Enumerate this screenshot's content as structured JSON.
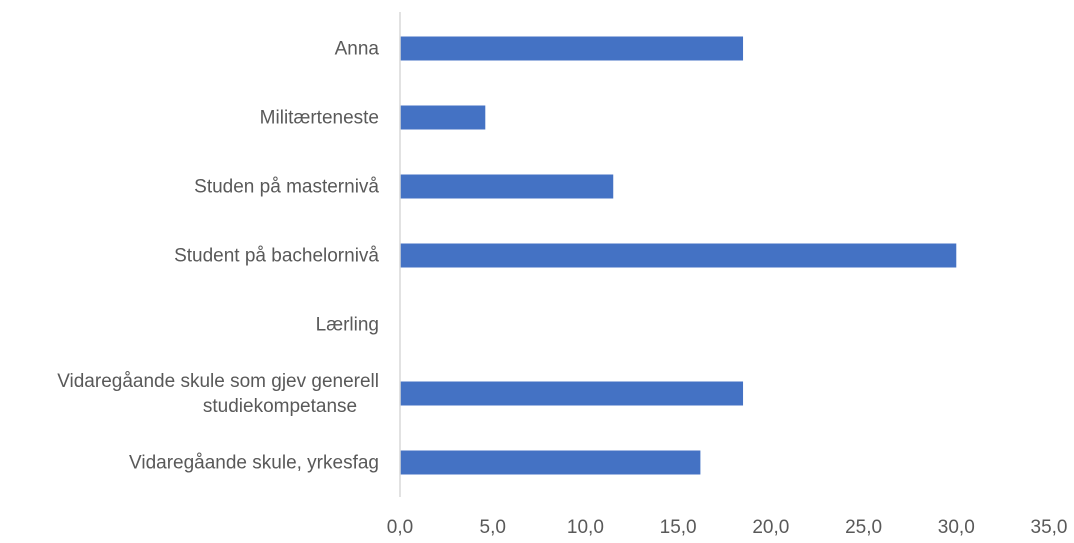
{
  "chart_data": {
    "type": "bar",
    "orientation": "horizontal",
    "title": "",
    "xlabel": "",
    "ylabel": "",
    "categories": [
      "Anna",
      "Militærteneste",
      "Studen på masternivå",
      "Student på bachelornivå",
      "Lærling",
      [
        "Vidaregåande skule som gjev generell",
        "studiekompetanse"
      ],
      "Vidaregåande skule, yrkesfag"
    ],
    "values": [
      18.5,
      4.6,
      11.5,
      30.0,
      0.0,
      18.5,
      16.2
    ],
    "xlim": [
      0,
      35
    ],
    "x_ticks": [
      0,
      5,
      10,
      15,
      20,
      25,
      30,
      35
    ],
    "x_tick_labels": [
      "0,0",
      "5,0",
      "10,0",
      "15,0",
      "20,0",
      "25,0",
      "30,0",
      "35,0"
    ],
    "grid": false,
    "legend": "none",
    "bar_color": "#4472C4",
    "axis_color": "#D9D9D9",
    "text_color": "#595959"
  }
}
